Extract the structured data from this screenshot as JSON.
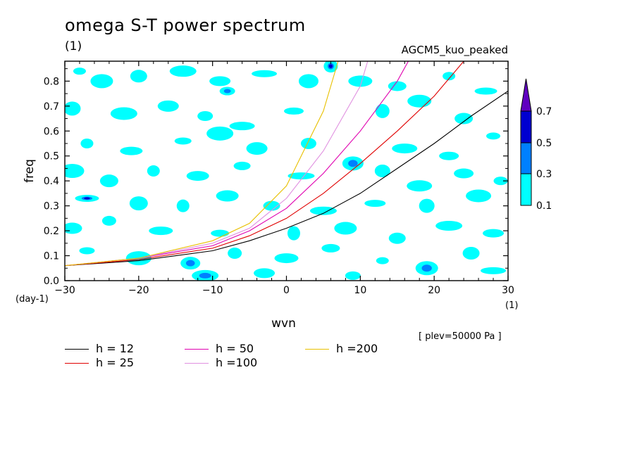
{
  "title": "omega S-T power spectrum",
  "subtitle": "(1)",
  "case_label": "AGCM5_kuo_peaked",
  "level_label": "[ plev=50000 Pa ]",
  "chart_data": {
    "type": "line",
    "xlabel": "wvn",
    "ylabel": "freq",
    "x_unit": "(1)",
    "y_unit": "(day-1)",
    "xlim": [
      -30,
      30
    ],
    "ylim": [
      0,
      0.88
    ],
    "x_ticks": [
      -30,
      -20,
      -10,
      0,
      10,
      20,
      30
    ],
    "y_ticks": [
      0.0,
      0.1,
      0.2,
      0.3,
      0.4,
      0.5,
      0.6,
      0.7,
      0.8
    ],
    "series": [
      {
        "name": "h = 12",
        "color": "#000000",
        "x": [
          -30,
          -20,
          -10,
          -5,
          0,
          5,
          10,
          15,
          20,
          25,
          30
        ],
        "y": [
          0.06,
          0.08,
          0.12,
          0.16,
          0.21,
          0.27,
          0.35,
          0.45,
          0.55,
          0.66,
          0.76
        ]
      },
      {
        "name": "h = 25",
        "color": "#e00000",
        "x": [
          -30,
          -20,
          -10,
          -5,
          0,
          5,
          10,
          15,
          20,
          24
        ],
        "y": [
          0.06,
          0.085,
          0.13,
          0.18,
          0.25,
          0.35,
          0.47,
          0.6,
          0.74,
          0.88
        ]
      },
      {
        "name": "h = 50",
        "color": "#e000b0",
        "x": [
          -30,
          -20,
          -10,
          -5,
          0,
          5,
          10,
          15,
          16.5
        ],
        "y": [
          0.06,
          0.09,
          0.14,
          0.2,
          0.29,
          0.43,
          0.6,
          0.8,
          0.88
        ]
      },
      {
        "name": "h =100",
        "color": "#e090e0",
        "x": [
          -30,
          -20,
          -10,
          -5,
          0,
          5,
          10,
          11
        ],
        "y": [
          0.06,
          0.09,
          0.15,
          0.21,
          0.33,
          0.52,
          0.78,
          0.88
        ]
      },
      {
        "name": "h =200",
        "color": "#e8c000",
        "x": [
          -30,
          -20,
          -10,
          -5,
          0,
          5,
          7
        ],
        "y": [
          0.06,
          0.09,
          0.16,
          0.23,
          0.38,
          0.68,
          0.88
        ]
      }
    ],
    "colorbar": {
      "levels": [
        "0.1",
        "0.3",
        "0.5",
        "0.7"
      ],
      "colors": [
        "#00ffff",
        "#0080ff",
        "#0000d0",
        "#6000c0"
      ]
    },
    "spectral_patches": [
      {
        "x": -28,
        "y": 0.84,
        "level": 0
      },
      {
        "x": -25,
        "y": 0.8,
        "level": 0
      },
      {
        "x": -20,
        "y": 0.82,
        "level": 0
      },
      {
        "x": -14,
        "y": 0.84,
        "level": 0
      },
      {
        "x": -9,
        "y": 0.8,
        "level": 0
      },
      {
        "x": -8,
        "y": 0.76,
        "level": 1
      },
      {
        "x": -3,
        "y": 0.83,
        "level": 0
      },
      {
        "x": 3,
        "y": 0.8,
        "level": 0
      },
      {
        "x": 6,
        "y": 0.86,
        "level": 2
      },
      {
        "x": 10,
        "y": 0.8,
        "level": 0
      },
      {
        "x": 15,
        "y": 0.78,
        "level": 0
      },
      {
        "x": 22,
        "y": 0.82,
        "level": 0
      },
      {
        "x": 27,
        "y": 0.76,
        "level": 0
      },
      {
        "x": -29,
        "y": 0.69,
        "level": 0
      },
      {
        "x": -22,
        "y": 0.67,
        "level": 0
      },
      {
        "x": -16,
        "y": 0.7,
        "level": 0
      },
      {
        "x": -11,
        "y": 0.66,
        "level": 0
      },
      {
        "x": -6,
        "y": 0.62,
        "level": 0
      },
      {
        "x": 1,
        "y": 0.68,
        "level": 0
      },
      {
        "x": 13,
        "y": 0.68,
        "level": 0
      },
      {
        "x": 18,
        "y": 0.72,
        "level": 0
      },
      {
        "x": 24,
        "y": 0.65,
        "level": 0
      },
      {
        "x": -27,
        "y": 0.55,
        "level": 0
      },
      {
        "x": -21,
        "y": 0.52,
        "level": 0
      },
      {
        "x": -14,
        "y": 0.56,
        "level": 0
      },
      {
        "x": -9,
        "y": 0.59,
        "level": 0
      },
      {
        "x": -4,
        "y": 0.53,
        "level": 0
      },
      {
        "x": 3,
        "y": 0.55,
        "level": 0
      },
      {
        "x": 16,
        "y": 0.53,
        "level": 0
      },
      {
        "x": 22,
        "y": 0.5,
        "level": 0
      },
      {
        "x": 28,
        "y": 0.58,
        "level": 0
      },
      {
        "x": -29,
        "y": 0.44,
        "level": 0
      },
      {
        "x": -24,
        "y": 0.4,
        "level": 0
      },
      {
        "x": -18,
        "y": 0.44,
        "level": 0
      },
      {
        "x": -12,
        "y": 0.42,
        "level": 0
      },
      {
        "x": -6,
        "y": 0.46,
        "level": 0
      },
      {
        "x": 2,
        "y": 0.42,
        "level": 0
      },
      {
        "x": 9,
        "y": 0.47,
        "level": 1
      },
      {
        "x": 13,
        "y": 0.44,
        "level": 0
      },
      {
        "x": 18,
        "y": 0.38,
        "level": 0
      },
      {
        "x": 24,
        "y": 0.43,
        "level": 0
      },
      {
        "x": 29,
        "y": 0.4,
        "level": 0
      },
      {
        "x": -27,
        "y": 0.33,
        "level": 2
      },
      {
        "x": -20,
        "y": 0.31,
        "level": 0
      },
      {
        "x": -14,
        "y": 0.3,
        "level": 0
      },
      {
        "x": -8,
        "y": 0.34,
        "level": 0
      },
      {
        "x": -2,
        "y": 0.3,
        "level": 0
      },
      {
        "x": 5,
        "y": 0.28,
        "level": 0
      },
      {
        "x": 12,
        "y": 0.31,
        "level": 0
      },
      {
        "x": 19,
        "y": 0.3,
        "level": 0
      },
      {
        "x": 26,
        "y": 0.34,
        "level": 0
      },
      {
        "x": -29,
        "y": 0.21,
        "level": 0
      },
      {
        "x": -24,
        "y": 0.24,
        "level": 0
      },
      {
        "x": -17,
        "y": 0.2,
        "level": 0
      },
      {
        "x": -9,
        "y": 0.19,
        "level": 0
      },
      {
        "x": 1,
        "y": 0.19,
        "level": 0
      },
      {
        "x": 8,
        "y": 0.21,
        "level": 0
      },
      {
        "x": 15,
        "y": 0.17,
        "level": 0
      },
      {
        "x": 22,
        "y": 0.22,
        "level": 0
      },
      {
        "x": 28,
        "y": 0.19,
        "level": 0
      },
      {
        "x": -27,
        "y": 0.12,
        "level": 0
      },
      {
        "x": -20,
        "y": 0.09,
        "level": 0
      },
      {
        "x": -13,
        "y": 0.07,
        "level": 1
      },
      {
        "x": -7,
        "y": 0.11,
        "level": 0
      },
      {
        "x": 0,
        "y": 0.09,
        "level": 0
      },
      {
        "x": 6,
        "y": 0.13,
        "level": 0
      },
      {
        "x": 13,
        "y": 0.08,
        "level": 0
      },
      {
        "x": 19,
        "y": 0.05,
        "level": 1
      },
      {
        "x": 25,
        "y": 0.11,
        "level": 0
      },
      {
        "x": -11,
        "y": 0.02,
        "level": 1
      },
      {
        "x": -3,
        "y": 0.03,
        "level": 0
      },
      {
        "x": 9,
        "y": 0.02,
        "level": 0
      },
      {
        "x": 28,
        "y": 0.04,
        "level": 0
      }
    ]
  }
}
